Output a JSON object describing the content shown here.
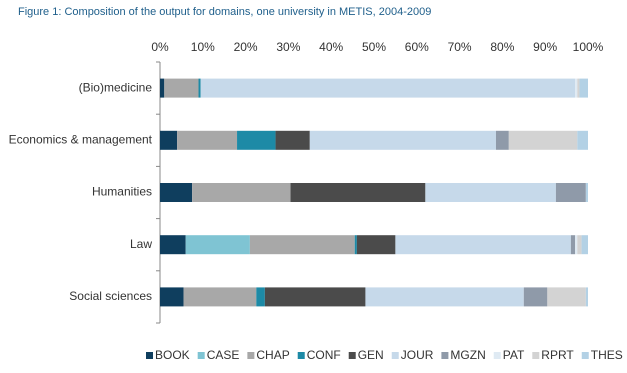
{
  "chart_data": {
    "type": "stacked_hbar",
    "title": "Figure 1: Composition of the output for domains, one university in METIS, 2004-2009",
    "categories": [
      "(Bio)medicine",
      "Economics & management",
      "Humanities",
      "Law",
      "Social sciences"
    ],
    "series": [
      {
        "name": "BOOK",
        "color": "#0f3e5e",
        "values": [
          1,
          4,
          7.5,
          6,
          5.5
        ]
      },
      {
        "name": "CASE",
        "color": "#7fc4d3",
        "values": [
          0,
          0,
          0,
          15,
          0
        ]
      },
      {
        "name": "CHAP",
        "color": "#a8a8a8",
        "values": [
          8,
          14,
          23,
          24.5,
          17
        ]
      },
      {
        "name": "CONF",
        "color": "#1d8aa6",
        "values": [
          0.5,
          9,
          0,
          0.5,
          2
        ]
      },
      {
        "name": "GEN",
        "color": "#4b4b4b",
        "values": [
          0,
          8,
          31.5,
          9,
          23.5
        ]
      },
      {
        "name": "JOUR",
        "color": "#c6d9ea",
        "values": [
          87.5,
          43.5,
          30.5,
          41,
          37
        ]
      },
      {
        "name": "MGZN",
        "color": "#8f9aa9",
        "values": [
          0,
          3,
          7,
          1,
          5.5
        ]
      },
      {
        "name": "PAT",
        "color": "#dfeaf3",
        "values": [
          0.5,
          0,
          0,
          0.5,
          0
        ]
      },
      {
        "name": "RPRT",
        "color": "#d3d3d3",
        "values": [
          0.5,
          16,
          0,
          1,
          9
        ]
      },
      {
        "name": "THES",
        "color": "#b3d1e5",
        "values": [
          2,
          2.5,
          0.5,
          1.5,
          0.5
        ]
      }
    ],
    "xlim": [
      0,
      100
    ],
    "xticks": [
      {
        "value": 0,
        "label": "0%"
      },
      {
        "value": 10,
        "label": "10%"
      },
      {
        "value": 20,
        "label": "20%"
      },
      {
        "value": 30,
        "label": "30%"
      },
      {
        "value": 40,
        "label": "40%"
      },
      {
        "value": 50,
        "label": "50%"
      },
      {
        "value": 60,
        "label": "60%"
      },
      {
        "value": 70,
        "label": "70%"
      },
      {
        "value": 80,
        "label": "80%"
      },
      {
        "value": 90,
        "label": "90%"
      },
      {
        "value": 100,
        "label": "100%"
      }
    ],
    "legend": "bottom"
  }
}
